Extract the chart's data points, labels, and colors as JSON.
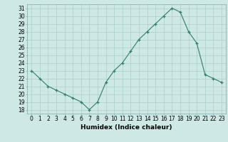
{
  "x": [
    0,
    1,
    2,
    3,
    4,
    5,
    6,
    7,
    8,
    9,
    10,
    11,
    12,
    13,
    14,
    15,
    16,
    17,
    18,
    19,
    20,
    21,
    22,
    23
  ],
  "y": [
    23,
    22,
    21,
    20.5,
    20,
    19.5,
    19,
    18,
    19,
    21.5,
    23,
    24,
    25.5,
    27,
    28,
    29,
    30,
    31,
    30.5,
    28,
    26.5,
    22.5,
    22,
    21.5
  ],
  "line_color": "#2e7d6e",
  "marker": "+",
  "marker_size": 3,
  "bg_color": "#cde8e5",
  "grid_color": "#aacfcc",
  "xlabel": "Humidex (Indice chaleur)",
  "xlim": [
    -0.5,
    23.5
  ],
  "ylim": [
    17.5,
    31.5
  ],
  "yticks": [
    18,
    19,
    20,
    21,
    22,
    23,
    24,
    25,
    26,
    27,
    28,
    29,
    30,
    31
  ],
  "xticks": [
    0,
    1,
    2,
    3,
    4,
    5,
    6,
    7,
    8,
    9,
    10,
    11,
    12,
    13,
    14,
    15,
    16,
    17,
    18,
    19,
    20,
    21,
    22,
    23
  ],
  "tick_fontsize": 5.5,
  "label_fontsize": 6.5,
  "line_width": 0.8,
  "markeredgewidth": 0.9
}
